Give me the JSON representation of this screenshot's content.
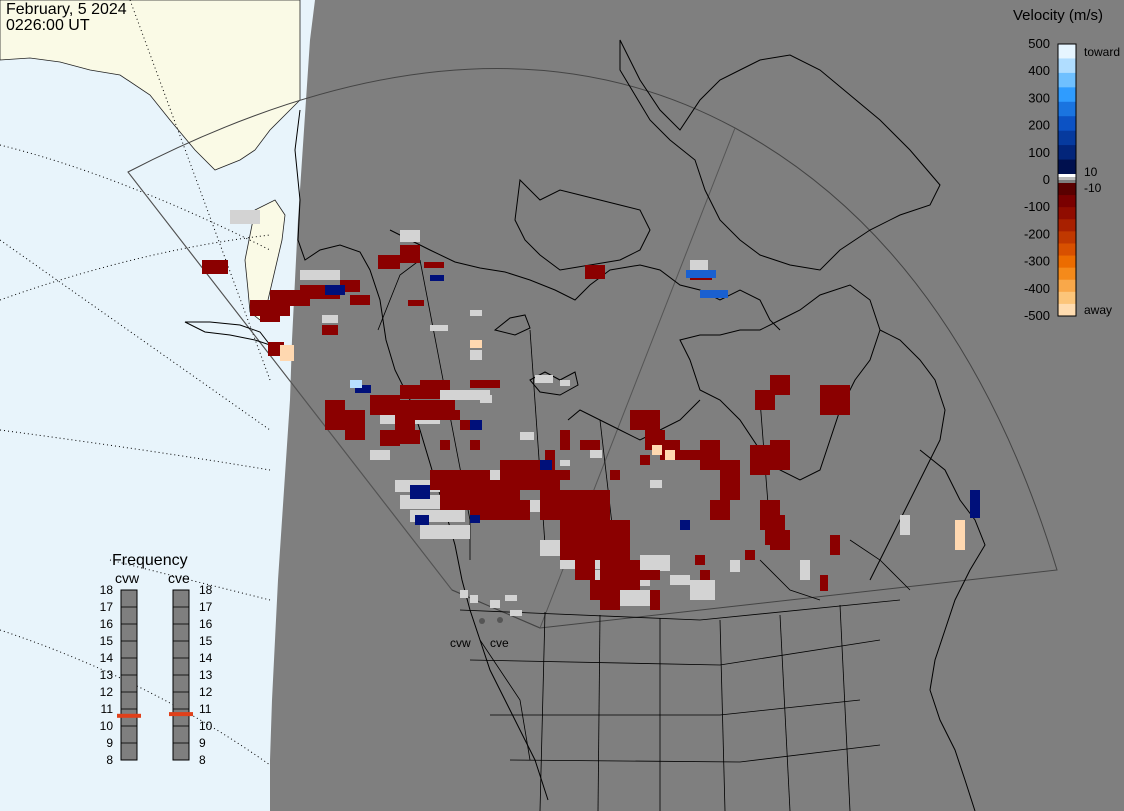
{
  "header": {
    "date": "February, 5 2024",
    "time": "0226:00 UT"
  },
  "colors": {
    "night": "#7f7f7f",
    "ocean_day": "#e8f4fb",
    "land_day": "#fafae6",
    "ground_scatter": "#d3d3d3",
    "frequency_marker": "#e0401a"
  },
  "radars": [
    {
      "id": "cvw",
      "label": "cvw",
      "frequency_mhz": 10.6
    },
    {
      "id": "cve",
      "label": "cve",
      "frequency_mhz": 10.7
    }
  ],
  "legend": {
    "title": "Velocity (m/s)",
    "ticks": [
      "500",
      "400",
      "300",
      "200",
      "100",
      "0",
      "-100",
      "-200",
      "-300",
      "-400",
      "-500"
    ],
    "near_zero_labels": [
      "10",
      "-10"
    ],
    "toward_label": "toward",
    "away_label": "away",
    "colors_top_to_bottom": [
      "#e6f5ff",
      "#b0ddff",
      "#6fc0ff",
      "#2f9cff",
      "#1a74e0",
      "#0c52c4",
      "#063a9e",
      "#02257a",
      "#00104e",
      "#5a0000",
      "#7a0000",
      "#900c00",
      "#a82000",
      "#c03800",
      "#d85000",
      "#ec6c00",
      "#f58a1a",
      "#f9a84a",
      "#fcc57a",
      "#ffdcb0"
    ]
  },
  "frequency_panel": {
    "title": "Frequency",
    "scale": [
      "18",
      "17",
      "16",
      "15",
      "14",
      "13",
      "12",
      "11",
      "10",
      "9",
      "8"
    ]
  }
}
